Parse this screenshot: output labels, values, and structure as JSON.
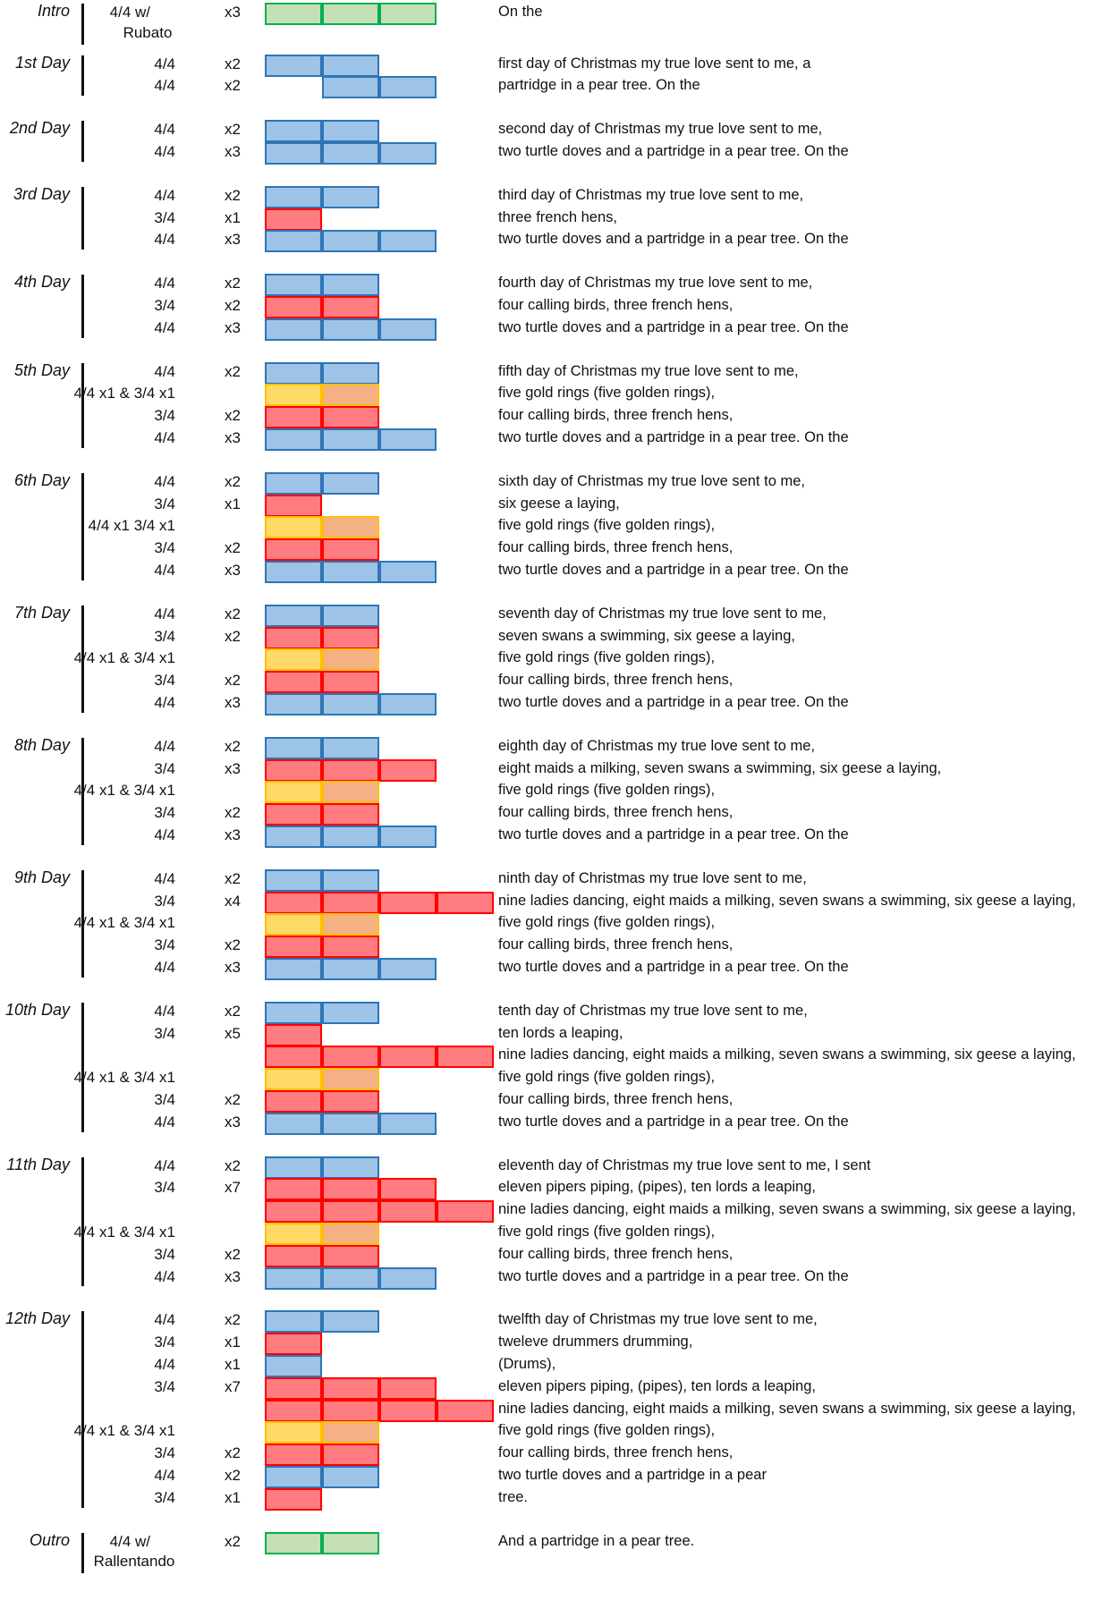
{
  "sections": [
    {
      "title": "Intro",
      "sub": "Rubato",
      "rows": [
        {
          "meter": "4/4 w/",
          "reps": "x3",
          "bar": "ggg",
          "lyric": "On the"
        }
      ]
    },
    {
      "title": "1st Day",
      "rows": [
        {
          "meter": "4/4",
          "reps": "x2",
          "bar": "bb",
          "lyric": "first day of Christmas my true love sent to me, a"
        },
        {
          "meter": "4/4",
          "reps": "x2",
          "bar": "_bb",
          "lyric": "partridge in a pear tree. On the"
        }
      ]
    },
    {
      "title": "2nd Day",
      "rows": [
        {
          "meter": "4/4",
          "reps": "x2",
          "bar": "bb",
          "lyric": "second day of Christmas my true love sent to me,"
        },
        {
          "meter": "4/4",
          "reps": "x3",
          "bar": "bbb",
          "lyric": "two turtle doves and a partridge in a pear tree. On the"
        }
      ]
    },
    {
      "title": "3rd Day",
      "rows": [
        {
          "meter": "4/4",
          "reps": "x2",
          "bar": "bb",
          "lyric": "third day of Christmas my true love sent to me,"
        },
        {
          "meter": "3/4",
          "reps": "x1",
          "bar": "r",
          "lyric": "three french hens,"
        },
        {
          "meter": "4/4",
          "reps": "x3",
          "bar": "bbb",
          "lyric": "two turtle doves and a partridge in a pear tree. On the"
        }
      ]
    },
    {
      "title": "4th Day",
      "rows": [
        {
          "meter": "4/4",
          "reps": "x2",
          "bar": "bb",
          "lyric": "fourth day of Christmas my true love sent to me,"
        },
        {
          "meter": "3/4",
          "reps": "x2",
          "bar": "rr",
          "lyric": "four calling birds, three french hens,"
        },
        {
          "meter": "4/4",
          "reps": "x3",
          "bar": "bbb",
          "lyric": "two turtle doves and a partridge in a pear tree. On the"
        }
      ]
    },
    {
      "title": "5th Day",
      "rows": [
        {
          "meter": "4/4",
          "reps": "x2",
          "bar": "bb",
          "lyric": "fifth day of Christmas my true love sent to me,"
        },
        {
          "meter": "4/4 x1  &  3/4 x1",
          "reps": "",
          "bar": "yo",
          "lyric": "five gold rings (five golden rings),"
        },
        {
          "meter": "3/4",
          "reps": "x2",
          "bar": "rr",
          "lyric": "four calling birds, three french hens,"
        },
        {
          "meter": "4/4",
          "reps": "x3",
          "bar": "bbb",
          "lyric": "two turtle doves and a partridge in a pear tree. On the"
        }
      ]
    },
    {
      "title": "6th Day",
      "rows": [
        {
          "meter": "4/4",
          "reps": "x2",
          "bar": "bb",
          "lyric": "sixth day of Christmas my true love sent to me,"
        },
        {
          "meter": "3/4",
          "reps": "x1",
          "bar": "r",
          "lyric": "six geese a laying,"
        },
        {
          "meter": "4/4 x1  3/4 x1",
          "reps": "",
          "bar": "yo",
          "lyric": "five gold rings (five golden rings),"
        },
        {
          "meter": "3/4",
          "reps": "x2",
          "bar": "rr",
          "lyric": "four calling birds, three french hens,"
        },
        {
          "meter": "4/4",
          "reps": "x3",
          "bar": "bbb",
          "lyric": "two turtle doves and a partridge in a pear tree. On the"
        }
      ]
    },
    {
      "title": "7th Day",
      "rows": [
        {
          "meter": "4/4",
          "reps": "x2",
          "bar": "bb",
          "lyric": "seventh day of Christmas my true love sent to me,"
        },
        {
          "meter": "3/4",
          "reps": "x2",
          "bar": "rr",
          "lyric": "seven swans a swimming, six geese a laying,"
        },
        {
          "meter": "4/4 x1  &  3/4 x1",
          "reps": "",
          "bar": "yo",
          "lyric": "five gold rings (five golden rings),"
        },
        {
          "meter": "3/4",
          "reps": "x2",
          "bar": "rr",
          "lyric": "four calling birds, three french hens,"
        },
        {
          "meter": "4/4",
          "reps": "x3",
          "bar": "bbb",
          "lyric": "two turtle doves and a partridge in a pear tree. On the"
        }
      ]
    },
    {
      "title": "8th Day",
      "rows": [
        {
          "meter": "4/4",
          "reps": "x2",
          "bar": "bb",
          "lyric": "eighth day of Christmas my true love sent to me,"
        },
        {
          "meter": "3/4",
          "reps": "x3",
          "bar": "rrr",
          "lyric": "eight maids a milking, seven swans a swimming, six geese a laying,"
        },
        {
          "meter": "4/4 x1  &  3/4 x1",
          "reps": "",
          "bar": "yo",
          "lyric": "five gold rings (five golden rings),"
        },
        {
          "meter": "3/4",
          "reps": "x2",
          "bar": "rr",
          "lyric": "four calling birds, three french hens,"
        },
        {
          "meter": "4/4",
          "reps": "x3",
          "bar": "bbb",
          "lyric": "two turtle doves and a partridge in a pear tree. On the"
        }
      ]
    },
    {
      "title": "9th Day",
      "rows": [
        {
          "meter": "4/4",
          "reps": "x2",
          "bar": "bb",
          "lyric": "ninth day of Christmas my true love sent to me,"
        },
        {
          "meter": "3/4",
          "reps": "x4",
          "bar": "rrrr",
          "lyric": "nine ladies dancing, eight maids a milking, seven swans a swimming, six geese a laying,"
        },
        {
          "meter": "4/4 x1  &  3/4 x1",
          "reps": "",
          "bar": "yo",
          "lyric": "five gold rings (five golden rings),"
        },
        {
          "meter": "3/4",
          "reps": "x2",
          "bar": "rr",
          "lyric": "four calling birds, three french hens,"
        },
        {
          "meter": "4/4",
          "reps": "x3",
          "bar": "bbb",
          "lyric": "two turtle doves and a partridge in a pear tree. On the"
        }
      ]
    },
    {
      "title": "10th Day",
      "rows": [
        {
          "meter": "4/4",
          "reps": "x2",
          "bar": "bb",
          "lyric": "tenth day of Christmas my true love sent to me,"
        },
        {
          "meter": "3/4",
          "reps": "x5",
          "bar": "r",
          "lyric": "ten lords a leaping,"
        },
        {
          "meter": "",
          "reps": "",
          "bar": "rrrr",
          "lyric": "nine ladies dancing, eight maids a milking, seven swans a swimming, six geese a laying,"
        },
        {
          "meter": "4/4 x1  &  3/4 x1",
          "reps": "",
          "bar": "yo",
          "lyric": "five gold rings (five golden rings),"
        },
        {
          "meter": "3/4",
          "reps": "x2",
          "bar": "rr",
          "lyric": "four calling birds, three french hens,"
        },
        {
          "meter": "4/4",
          "reps": "x3",
          "bar": "bbb",
          "lyric": "two turtle doves and a partridge in a pear tree. On the"
        }
      ]
    },
    {
      "title": "11th Day",
      "rows": [
        {
          "meter": "4/4",
          "reps": "x2",
          "bar": "bb",
          "lyric": "eleventh day of Christmas my true love sent to me, I sent"
        },
        {
          "meter": "3/4",
          "reps": "x7",
          "bar": "rrr",
          "lyric": "eleven pipers piping, (pipes), ten lords a leaping,"
        },
        {
          "meter": "",
          "reps": "",
          "bar": "rrrr",
          "lyric": "nine ladies dancing, eight maids a milking, seven swans a swimming, six geese a laying,"
        },
        {
          "meter": "4/4 x1  &  3/4 x1",
          "reps": "",
          "bar": "yo",
          "lyric": "five gold rings (five golden rings),"
        },
        {
          "meter": "3/4",
          "reps": "x2",
          "bar": "rr",
          "lyric": "four calling birds, three french hens,"
        },
        {
          "meter": "4/4",
          "reps": "x3",
          "bar": "bbb",
          "lyric": "two turtle doves and a partridge in a pear tree. On the"
        }
      ]
    },
    {
      "title": "12th Day",
      "rows": [
        {
          "meter": "4/4",
          "reps": "x2",
          "bar": "bb",
          "lyric": "twelfth day of Christmas my true love sent to me,"
        },
        {
          "meter": "3/4",
          "reps": "x1",
          "bar": "r",
          "lyric": "tweleve drummers drumming,"
        },
        {
          "meter": "4/4",
          "reps": "x1",
          "bar": "b",
          "lyric": "(Drums),"
        },
        {
          "meter": "3/4",
          "reps": "x7",
          "bar": "rrr",
          "lyric": "eleven pipers piping, (pipes), ten lords a leaping,"
        },
        {
          "meter": "",
          "reps": "",
          "bar": "rrrr",
          "lyric": "nine ladies dancing, eight maids a milking, seven swans a swimming, six geese a laying,"
        },
        {
          "meter": "4/4 x1  &  3/4 x1",
          "reps": "",
          "bar": "yo",
          "lyric": "five gold rings (five golden rings),"
        },
        {
          "meter": "3/4",
          "reps": "x2",
          "bar": "rr",
          "lyric": "four calling birds, three french hens,"
        },
        {
          "meter": "4/4",
          "reps": "x2",
          "bar": "bb",
          "lyric": "two turtle doves and a partridge in a pear"
        },
        {
          "meter": "3/4",
          "reps": "x1",
          "bar": "r",
          "lyric": "tree."
        }
      ]
    },
    {
      "title": "Outro",
      "sub": "Rallentando",
      "rows": [
        {
          "meter": "4/4 w/",
          "reps": "x2",
          "bar": "gg",
          "lyric": "And a partridge in a pear tree."
        }
      ]
    }
  ]
}
